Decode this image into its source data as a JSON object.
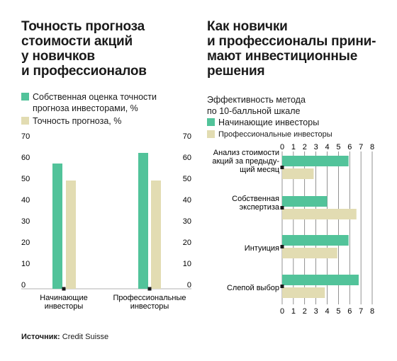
{
  "left": {
    "title": "Точность прогноза\nстоимости акций\nу новичков\nи профессионалов",
    "legend": [
      {
        "label": "Собственная оценка точности\nпрогноза инвесторами, %",
        "color": "#52c39a"
      },
      {
        "label": "Точность прогноза, %",
        "color": "#e2dcb2"
      }
    ]
  },
  "right": {
    "title": "Как новички\nи профессионалы прини-\nмают инвестиционные\nрешения",
    "subtitle": "Эффективность метода\nпо 10-балльной шкале",
    "legend": [
      {
        "label": "Начинающие инвесторы",
        "color": "#52c39a"
      },
      {
        "label": "Профессиональные инвесторы",
        "color": "#e2dcb2"
      }
    ]
  },
  "source": {
    "label": "Источник:",
    "text": " Credit Suisse"
  },
  "chart_data": [
    {
      "type": "bar",
      "categories": [
        "Начинающие\nинвесторы",
        "Профессиональные\nинвесторы"
      ],
      "series": [
        {
          "name": "Собственная оценка точности прогноза инвесторами, %",
          "values": [
            59,
            64
          ],
          "color": "#52c39a"
        },
        {
          "name": "Точность прогноза, %",
          "values": [
            51,
            51
          ],
          "color": "#e2dcb2"
        }
      ],
      "yticks": [
        0,
        10,
        20,
        30,
        40,
        50,
        60,
        70
      ],
      "ylim": [
        0,
        70
      ],
      "grid": false
    },
    {
      "type": "bar",
      "orientation": "horizontal",
      "categories": [
        "Анализ стоимости\nакций за предыду-\nщий месяц",
        "Собственная\nэкспертиза",
        "Интуиция",
        "Слепой выбор"
      ],
      "series": [
        {
          "name": "Начинающие инвесторы",
          "values": [
            5.9,
            4.0,
            5.9,
            6.8
          ],
          "color": "#52c39a"
        },
        {
          "name": "Профессиональные инвесторы",
          "values": [
            2.8,
            6.6,
            4.9,
            3.8
          ],
          "color": "#e2dcb2"
        }
      ],
      "xticks": [
        0,
        1,
        2,
        3,
        4,
        5,
        6,
        7,
        8
      ],
      "xlim": [
        0,
        8
      ],
      "grid": true
    }
  ]
}
